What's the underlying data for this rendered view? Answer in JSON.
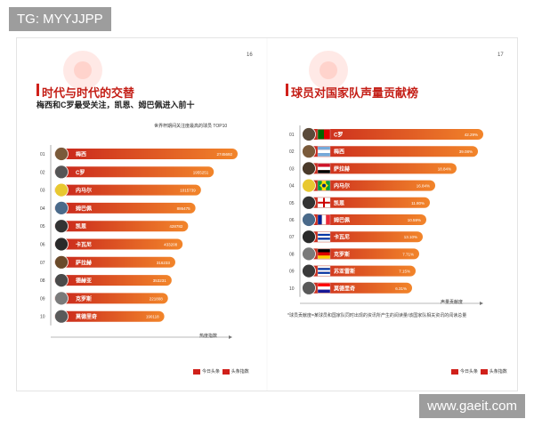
{
  "watermarks": {
    "top_left": "TG: MYYJJPP",
    "bottom_right": "www.gaeit.com"
  },
  "colors": {
    "bar_start": "#c8241c",
    "bar_end": "#f2852a",
    "title": "#c41e16",
    "axis": "#777777"
  },
  "left_page": {
    "page_number": "16",
    "title": "时代与时代的交替",
    "subtitle": "梅西和C罗最受关注，凯恩、姆巴佩进入前十",
    "chart_caption": "世界杯期间关注度最高的球员 TOP10",
    "axis_label": "热度指数",
    "footer": [
      "今日头条",
      "头条指数"
    ]
  },
  "right_page": {
    "page_number": "17",
    "title": "球员对国家队声量贡献榜",
    "axis_label": "声量贡献度",
    "footnote": "*球员贡献度=某球员和国家队同时出现的资讯所产生的阅读量/该国家队相关资讯的阅读总量",
    "footer": [
      "今日头条",
      "头条指数"
    ]
  },
  "chart_data": [
    {
      "type": "bar",
      "orientation": "horizontal",
      "title": "世界杯期间关注度最高的球员 TOP10",
      "xlabel": "热度指数",
      "ranks": [
        "01",
        "02",
        "03",
        "04",
        "05",
        "06",
        "07",
        "08",
        "09",
        "10"
      ],
      "categories": [
        "梅西",
        "C罗",
        "内马尔",
        "姆巴佩",
        "凯恩",
        "卡瓦尼",
        "萨拉赫",
        "德赫亚",
        "克罗斯",
        "莫德里奇"
      ],
      "value_labels": [
        "2745692",
        "1955251",
        "1015739",
        "886475",
        "428782",
        "433208",
        "316233",
        "353231",
        "221808",
        "190118"
      ],
      "values": [
        2745692,
        1955251,
        1015739,
        886475,
        428782,
        433208,
        316233,
        353231,
        221808,
        190118
      ],
      "bar_fraction": [
        1.0,
        0.87,
        0.8,
        0.77,
        0.73,
        0.7,
        0.66,
        0.64,
        0.62,
        0.6
      ],
      "avatar_colors": [
        "#7a5a3a",
        "#555555",
        "#e8c830",
        "#4a6a8a",
        "#333333",
        "#2a2a2a",
        "#6a4a2a",
        "#4a4a4a",
        "#7a7a7a",
        "#5a5a5a"
      ]
    },
    {
      "type": "bar",
      "orientation": "horizontal",
      "title": "球员对国家队声量贡献榜",
      "xlabel": "声量贡献度",
      "ranks": [
        "01",
        "02",
        "03",
        "04",
        "05",
        "06",
        "07",
        "08",
        "09",
        "10"
      ],
      "categories": [
        "C罗",
        "梅西",
        "萨拉赫",
        "内马尔",
        "凯恩",
        "姆巴佩",
        "卡瓦尼",
        "克罗斯",
        "苏亚雷斯",
        "莫德里奇"
      ],
      "value_labels": [
        "42.29%",
        "39.08%",
        "18.84%",
        "16.84%",
        "11.80%",
        "10.59%",
        "13.10%",
        "7.71%",
        "7.15%",
        "6.31%"
      ],
      "values": [
        42.29,
        39.08,
        18.84,
        16.84,
        11.8,
        10.59,
        13.1,
        7.71,
        7.15,
        6.31
      ],
      "bar_fraction": [
        1.0,
        0.97,
        0.85,
        0.73,
        0.7,
        0.68,
        0.66,
        0.64,
        0.62,
        0.6
      ],
      "flags": [
        {
          "stripes": [
            "#006600",
            "#dd0000"
          ],
          "dir": "v"
        },
        {
          "stripes": [
            "#75aadb",
            "#ffffff",
            "#75aadb"
          ],
          "dir": "h"
        },
        {
          "stripes": [
            "#ce1126",
            "#ffffff",
            "#000000"
          ],
          "dir": "h"
        },
        {
          "stripes": [
            "#009c3b",
            "#ffdf00",
            "#009c3b"
          ],
          "dir": "v",
          "diamond": "#ffdf00"
        },
        {
          "stripes": [
            "#ffffff"
          ],
          "dir": "h",
          "cross": "#cc0000"
        },
        {
          "stripes": [
            "#002395",
            "#ffffff",
            "#ed2939"
          ],
          "dir": "v"
        },
        {
          "stripes": [
            "#ffffff",
            "#0038a8",
            "#ffffff",
            "#0038a8",
            "#ffffff"
          ],
          "dir": "h"
        },
        {
          "stripes": [
            "#000000",
            "#dd0000",
            "#ffce00"
          ],
          "dir": "h"
        },
        {
          "stripes": [
            "#ffffff",
            "#0038a8",
            "#ffffff",
            "#0038a8",
            "#ffffff"
          ],
          "dir": "h"
        },
        {
          "stripes": [
            "#ff0000",
            "#ffffff",
            "#171796"
          ],
          "dir": "h"
        }
      ],
      "avatar_colors": [
        "#5a4a3a",
        "#7a5a3a",
        "#4a3a2a",
        "#e8c830",
        "#333333",
        "#4a6a8a",
        "#2a2a2a",
        "#7a7a7a",
        "#3a3a3a",
        "#5a5a5a"
      ]
    }
  ]
}
